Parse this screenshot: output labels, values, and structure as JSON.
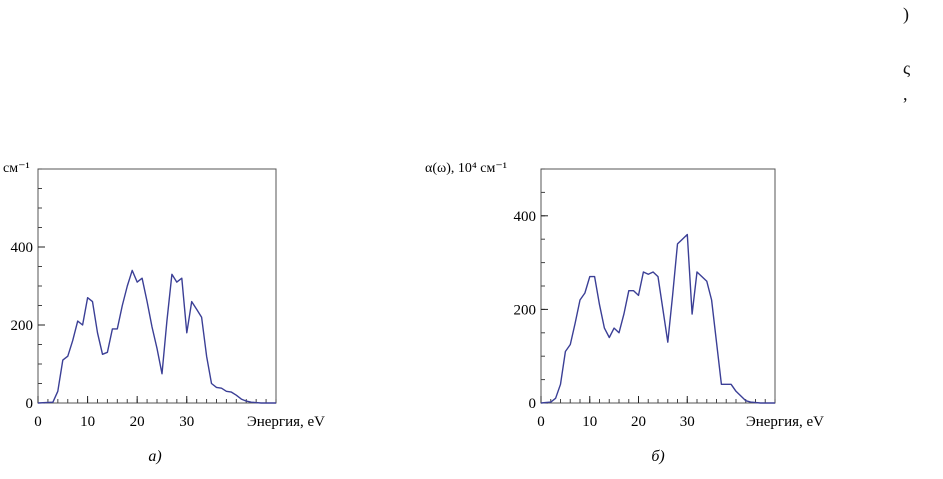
{
  "fragments": [
    ")",
    "ς",
    ","
  ],
  "chart_data": [
    {
      "type": "line",
      "ylabel": "см⁻¹",
      "xlabel": "Энергия, eV",
      "caption": "а)",
      "xlim": [
        0,
        48
      ],
      "ylim": [
        0,
        600
      ],
      "xticks": [
        0,
        10,
        20,
        30
      ],
      "yticks": [
        0,
        200,
        400
      ],
      "color": "#3b3f96",
      "x": [
        0,
        3,
        4,
        5,
        6,
        7,
        8,
        9,
        10,
        11,
        12,
        13,
        14,
        15,
        16,
        17,
        18,
        19,
        20,
        21,
        22,
        23,
        24,
        25,
        26,
        27,
        28,
        29,
        30,
        31,
        32,
        33,
        34,
        35,
        36,
        37,
        38,
        39,
        40,
        41,
        42,
        43,
        45,
        48
      ],
      "y": [
        0,
        2,
        30,
        110,
        120,
        160,
        210,
        200,
        270,
        260,
        180,
        125,
        130,
        190,
        190,
        250,
        300,
        340,
        310,
        320,
        260,
        195,
        140,
        75,
        210,
        330,
        310,
        320,
        180,
        260,
        240,
        220,
        120,
        50,
        40,
        38,
        30,
        28,
        20,
        10,
        5,
        2,
        0,
        0
      ]
    },
    {
      "type": "line",
      "ylabel": "α(ω), 10⁴ см⁻¹",
      "xlabel": "Энергия, eV",
      "caption": "б)",
      "xlim": [
        0,
        48
      ],
      "ylim": [
        0,
        500
      ],
      "xticks": [
        0,
        10,
        20,
        30
      ],
      "yticks": [
        0,
        200,
        400
      ],
      "color": "#3b3f96",
      "x": [
        0,
        2,
        3,
        4,
        5,
        6,
        7,
        8,
        9,
        10,
        11,
        12,
        13,
        14,
        15,
        16,
        17,
        18,
        19,
        20,
        21,
        22,
        23,
        24,
        25,
        26,
        27,
        28,
        29,
        30,
        31,
        32,
        33,
        34,
        35,
        36,
        37,
        38,
        39,
        40,
        41,
        42,
        43,
        45,
        48
      ],
      "y": [
        0,
        2,
        10,
        40,
        110,
        125,
        170,
        220,
        235,
        270,
        270,
        210,
        160,
        140,
        160,
        150,
        190,
        240,
        240,
        230,
        280,
        275,
        280,
        270,
        200,
        130,
        230,
        340,
        350,
        360,
        190,
        280,
        270,
        260,
        220,
        130,
        40,
        40,
        40,
        25,
        15,
        5,
        2,
        0,
        0
      ]
    }
  ]
}
